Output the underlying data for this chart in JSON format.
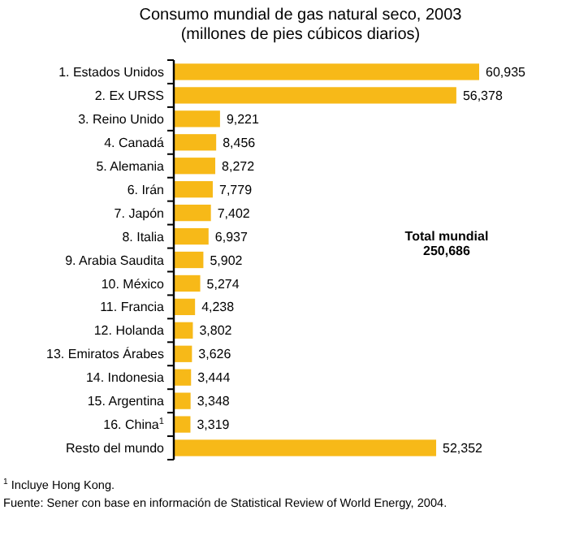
{
  "chart_data": {
    "type": "bar",
    "orientation": "horizontal",
    "title": "Consumo mundial de gas natural seco, 2003",
    "subtitle": "(millones de pies cúbicos diarios)",
    "categories": [
      "1. Estados Unidos",
      "2. Ex URSS",
      "3. Reino Unido",
      "4. Canadá",
      "5. Alemania",
      "6. Irán",
      "7. Japón",
      "8. Italia",
      "9. Arabia Saudita",
      "10. México",
      "11. Francia",
      "12. Holanda",
      "13. Emiratos Árabes",
      "14. Indonesia",
      "15. Argentina",
      "16. China$^{1}$",
      "Resto del mundo"
    ],
    "values": [
      60935,
      56378,
      9221,
      8456,
      8272,
      7779,
      7402,
      6937,
      5902,
      5274,
      4238,
      3802,
      3626,
      3444,
      3348,
      3319,
      52352
    ],
    "value_labels": [
      "60,935",
      "56,378",
      "9,221",
      "8,456",
      "8,272",
      "7,779",
      "7,402",
      "6,937",
      "5,902",
      "5,274",
      "4,238",
      "3,802",
      "3,626",
      "3,444",
      "3,348",
      "3,319",
      "52,352"
    ],
    "color": "#f7b918",
    "annotations": [
      "Total mundial\n250,686",
      "$^{1}$ Incluye Hong Kong.",
      "Fuente: Sener con base en información de Statistical Review of World Energy, 2004."
    ]
  }
}
